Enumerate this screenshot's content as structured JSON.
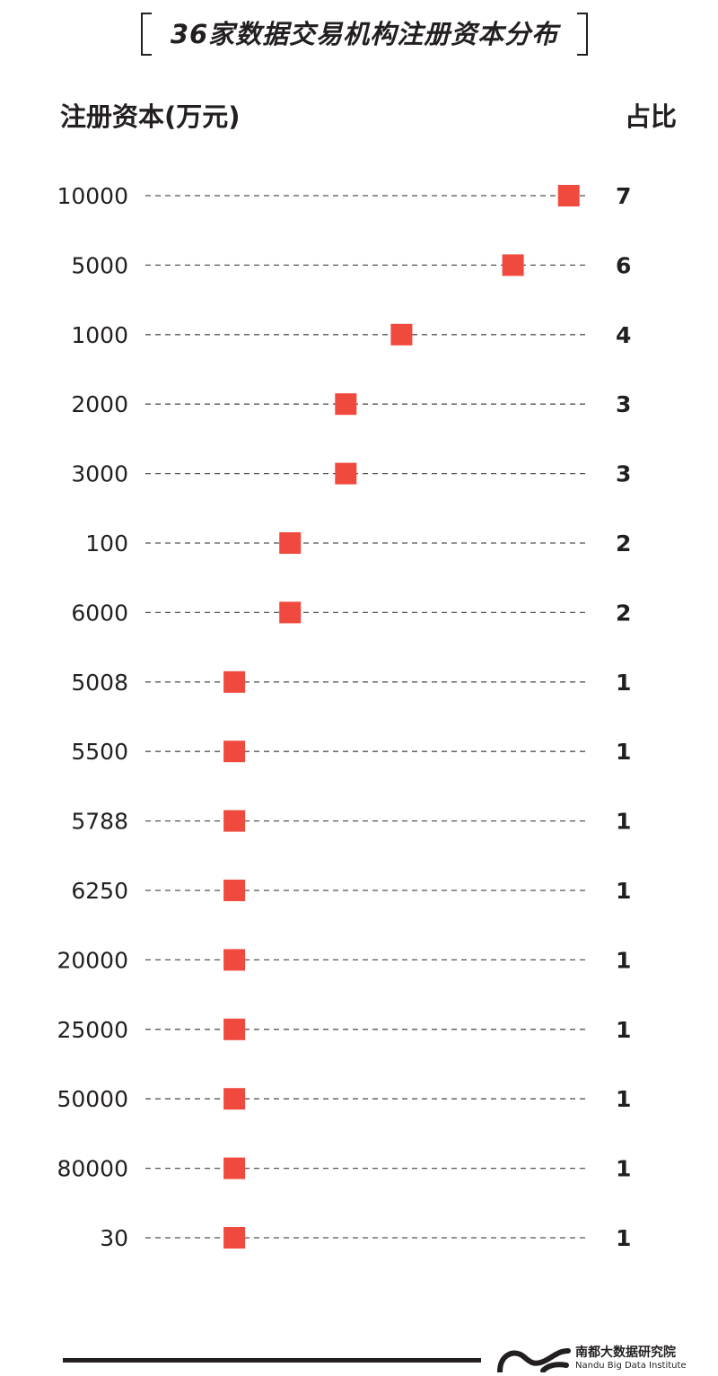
{
  "title": "36家数据交易机构注册资本分布",
  "column_headers": {
    "left": "注册资本(万元)",
    "right": "占比"
  },
  "brand": {
    "name_cn": "南都大数据研究院",
    "name_en": "Nandu Big Data Institute"
  },
  "colors": {
    "marker": "#f04a3e",
    "text": "#231f20",
    "dash": "#555555"
  },
  "chart_data": {
    "type": "scatter",
    "orientation": "horizontal",
    "categories": [
      "10000",
      "5000",
      "1000",
      "2000",
      "3000",
      "100",
      "6000",
      "5008",
      "5500",
      "5788",
      "6250",
      "20000",
      "25000",
      "50000",
      "80000",
      "30"
    ],
    "values": [
      7,
      6,
      4,
      3,
      3,
      2,
      2,
      1,
      1,
      1,
      1,
      1,
      1,
      1,
      1,
      1
    ],
    "title": "36家数据交易机构注册资本分布",
    "ylabel": "注册资本(万元)",
    "value_label": "占比",
    "xlim": [
      0,
      7
    ],
    "marker": "square",
    "grid": "dashed row guides"
  }
}
